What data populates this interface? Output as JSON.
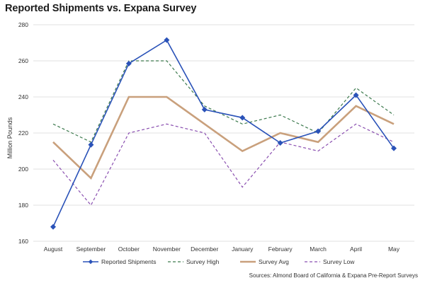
{
  "chart_data": {
    "type": "line",
    "title": "Reported Shipments vs. Expana Survey",
    "ylabel": "Million Pounds",
    "xlabel": "",
    "categories": [
      "August",
      "September",
      "October",
      "November",
      "December",
      "January",
      "February",
      "March",
      "April",
      "May"
    ],
    "yticks": [
      "160",
      "180",
      "200",
      "220",
      "240",
      "260",
      "280"
    ],
    "ylim": [
      160,
      280
    ],
    "grid": "horizontal",
    "legend_position": "bottom",
    "series": [
      {
        "name": "Reported Shipments",
        "color": "#2a52b8",
        "style": "solid-diamond",
        "values": [
          168,
          213.5,
          258.5,
          271.5,
          233,
          228.5,
          214.5,
          221,
          241,
          211.5
        ]
      },
      {
        "name": "Survey High",
        "color": "#3d7a4e",
        "style": "dashed",
        "values": [
          225,
          215,
          260,
          260,
          235,
          225,
          230,
          220,
          245,
          230
        ]
      },
      {
        "name": "Survey Avg",
        "color": "#c9a07c",
        "style": "thick",
        "values": [
          215,
          195,
          240,
          240,
          225,
          210,
          220,
          215,
          235,
          225
        ]
      },
      {
        "name": "Survey Low",
        "color": "#8a4fb0",
        "style": "dashed",
        "values": [
          205,
          180,
          220,
          225,
          220,
          190,
          215,
          210,
          225,
          215
        ]
      }
    ],
    "source": "Sources: Almond Board of California & Expana Pre-Report Surveys"
  }
}
